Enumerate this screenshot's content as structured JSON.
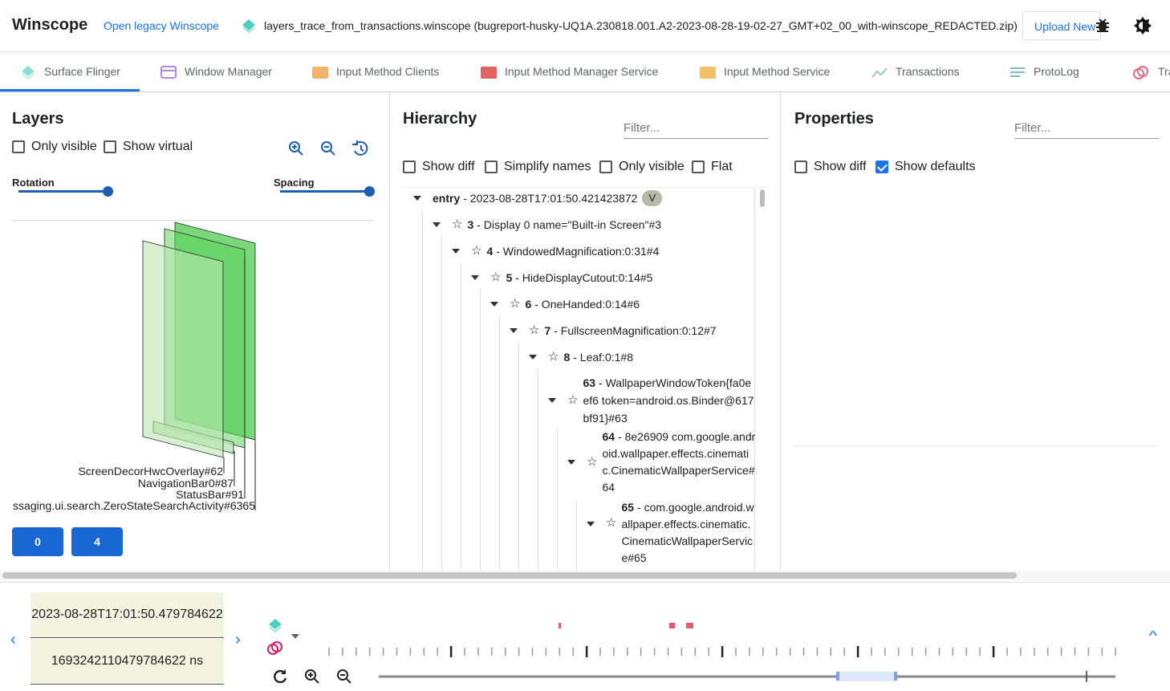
{
  "header": {
    "title": "Winscope",
    "legacy_link": "Open legacy Winscope",
    "filename": "layers_trace_from_transactions.winscope (bugreport-husky-UQ1A.230818.001.A2-2023-08-28-19-02-27_GMT+02_00_with-winscope_REDACTED.zip)",
    "upload_label": "Upload New"
  },
  "tabs": [
    {
      "label": "Surface Flinger",
      "icon": "layers-icon",
      "active": true
    },
    {
      "label": "Window Manager",
      "icon": "window-icon"
    },
    {
      "label": "Input Method Clients",
      "icon": "keyboard-icon"
    },
    {
      "label": "Input Method Manager Service",
      "icon": "keyboard-icon"
    },
    {
      "label": "Input Method Service",
      "icon": "keyboard-icon"
    },
    {
      "label": "Transactions",
      "icon": "timeline-icon"
    },
    {
      "label": "ProtoLog",
      "icon": "notes-icon"
    },
    {
      "label": "Tra",
      "icon": "rings-icon"
    }
  ],
  "layers": {
    "title": "Layers",
    "only_visible": "Only visible",
    "show_virtual": "Show virtual",
    "rotation": "Rotation",
    "spacing": "Spacing",
    "rotation_value": 1.0,
    "spacing_value": 1.0,
    "labels": [
      "ScreenDecorHwcOverlay#62",
      "NavigationBar0#87",
      "StatusBar#91",
      "ssaging.ui.search.ZeroStateSearchActivity#6365"
    ],
    "display_buttons": [
      "0",
      "4"
    ]
  },
  "hierarchy": {
    "title": "Hierarchy",
    "filter_placeholder": "Filter...",
    "show_diff": "Show diff",
    "simplify_names": "Simplify names",
    "only_visible": "Only visible",
    "flat": "Flat",
    "entry": {
      "label": "entry",
      "text": "- 2023-08-28T17:01:50.421423872",
      "badge": "V"
    },
    "nodes": [
      {
        "id": "3",
        "text": "- Display 0 name=\"Built-in Screen\"#3"
      },
      {
        "id": "4",
        "text": "- WindowedMagnification:0:31#4"
      },
      {
        "id": "5",
        "text": "- HideDisplayCutout:0:14#5"
      },
      {
        "id": "6",
        "text": "- OneHanded:0:14#6"
      },
      {
        "id": "7",
        "text": "- FullscreenMagnification:0:12#7"
      },
      {
        "id": "8",
        "text": "- Leaf:0:1#8"
      },
      {
        "id": "63",
        "text": "- WallpaperWindowToken{fa0eef6 token=android.os.Binder@617bf91}#63"
      },
      {
        "id": "64",
        "text": "- 8e26909 com.google.android.wallpaper.effects.cinematic.CinematicWallpaperService#64"
      },
      {
        "id": "65",
        "text": "- com.google.android.wallpaper.effects.cinematic.CinematicWallpaperService#65"
      }
    ]
  },
  "properties": {
    "title": "Properties",
    "filter_placeholder": "Filter...",
    "show_diff": "Show diff",
    "show_defaults": "Show defaults",
    "show_defaults_checked": true
  },
  "timeline": {
    "timestamp": "2023-08-28T17:01:50.479784622",
    "timestamp_ns": "1693242110479784622 ns"
  },
  "colors": {
    "accent": "#1a73e8",
    "button": "#1967d2",
    "layer_green": "#4caf50",
    "transaction_marker": "#e8576f"
  }
}
